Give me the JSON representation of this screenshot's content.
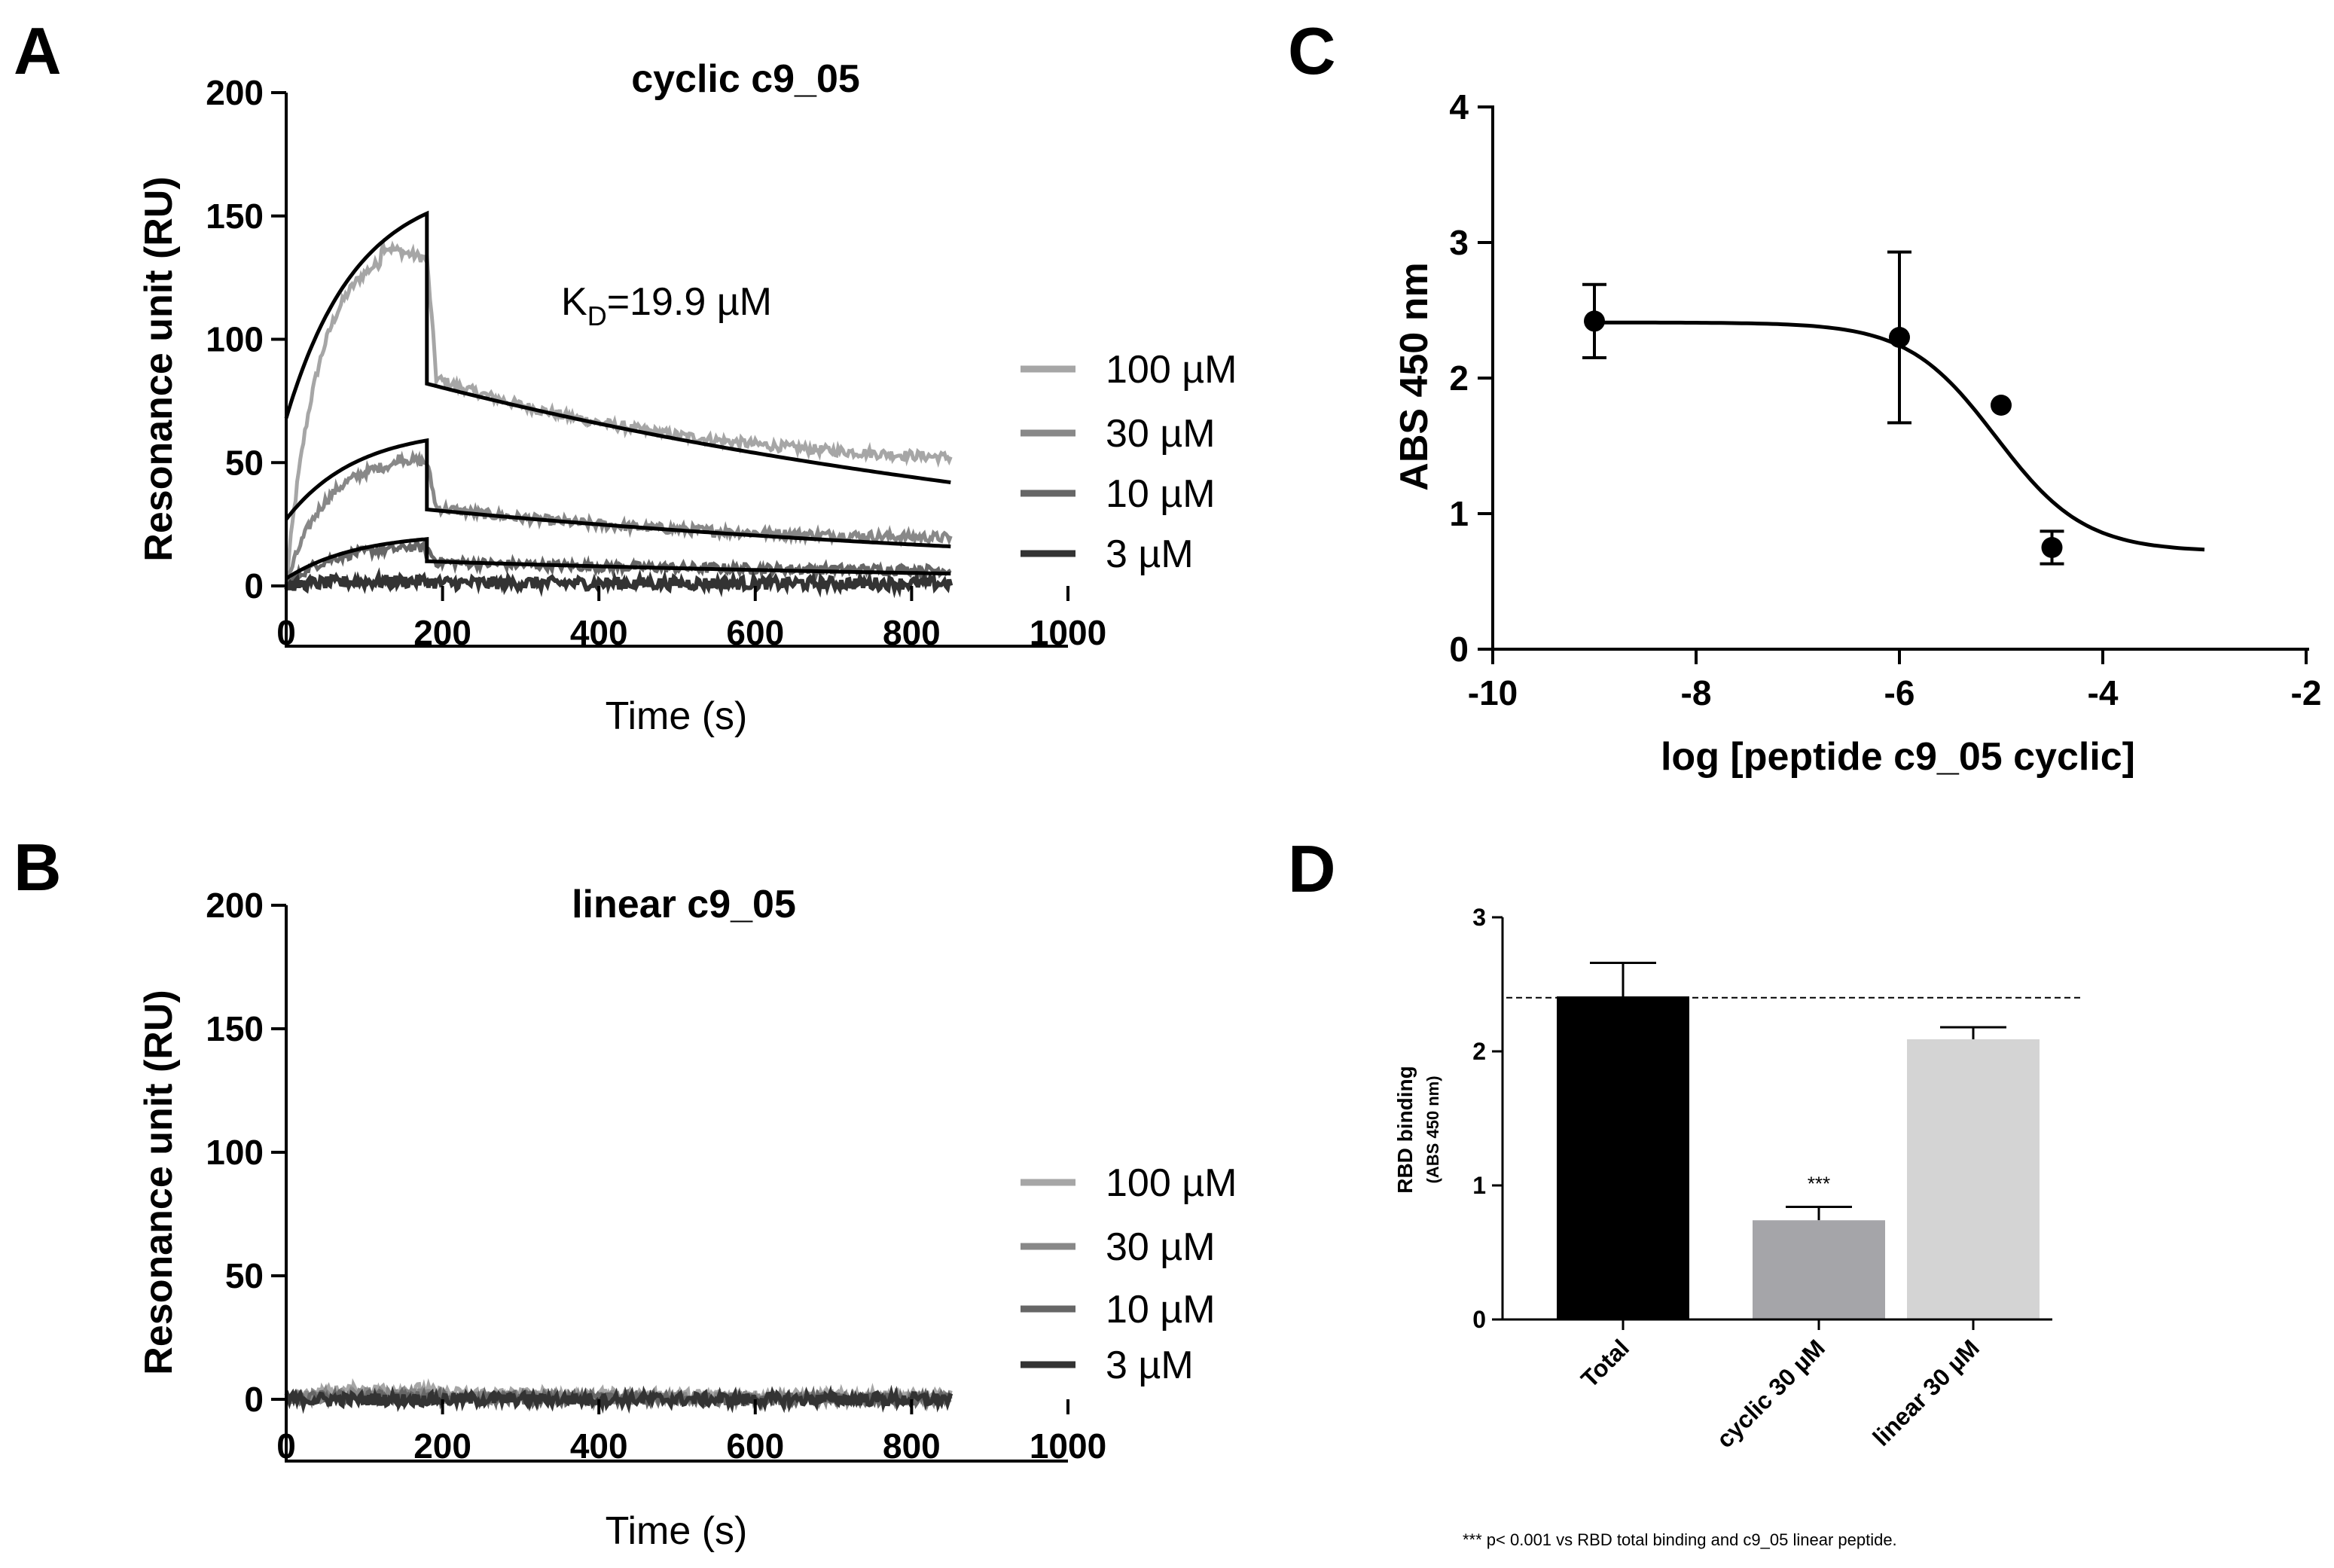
{
  "panels": {
    "A": {
      "letter": "A"
    },
    "B": {
      "letter": "B"
    },
    "C": {
      "letter": "C"
    },
    "D": {
      "letter": "D"
    }
  },
  "colors": {
    "c100": "#a6a6a6",
    "c30": "#888888",
    "c10": "#666666",
    "c3": "#333333",
    "fit": "#000000",
    "barTotal": "#000000",
    "barCyclic": "#a5a5a9",
    "barLinear": "#d4d4d4"
  },
  "chart_data": [
    {
      "id": "A",
      "type": "line",
      "title": "cyclic c9_05",
      "xlabel": "Time (s)",
      "ylabel": "Resonance unit (RU)",
      "xlim": [
        0,
        1000
      ],
      "ylim": [
        0,
        200
      ],
      "xticks": [
        "0",
        "200",
        "400",
        "600",
        "800",
        "1000"
      ],
      "yticks": [
        "0",
        "50",
        "100",
        "150",
        "200"
      ],
      "annotation": {
        "k": "K",
        "sub": "D",
        "rest": "=19.9 µM"
      },
      "injection_end_s": 180,
      "series": [
        {
          "name": "100 µM",
          "color_key": "c100",
          "plateau": 138,
          "peak_t": 120,
          "end_value": 48
        },
        {
          "name": "30 µM",
          "color_key": "c30",
          "plateau": 52,
          "peak_t": 140,
          "end_value": 18
        },
        {
          "name": "10 µM",
          "color_key": "c10",
          "plateau": 16,
          "peak_t": 150,
          "end_value": 6
        },
        {
          "name": "3 µM",
          "color_key": "c3",
          "plateau": 2,
          "peak_t": 150,
          "end_value": 1
        }
      ],
      "fits": [
        {
          "start": 68,
          "peak": 151,
          "drop_to": 82,
          "end_value": 42
        },
        {
          "start": 27,
          "peak": 59,
          "drop_to": 31,
          "end_value": 16
        },
        {
          "start": 3,
          "peak": 19,
          "drop_to": 10,
          "end_value": 5
        }
      ],
      "x_end": 850
    },
    {
      "id": "B",
      "type": "line",
      "title": "linear c9_05",
      "xlabel": "Time (s)",
      "ylabel": "Resonance unit (RU)",
      "xlim": [
        0,
        1000
      ],
      "ylim": [
        0,
        200
      ],
      "xticks": [
        "0",
        "200",
        "400",
        "600",
        "800",
        "1000"
      ],
      "yticks": [
        "0",
        "50",
        "100",
        "150",
        "200"
      ],
      "series": [
        {
          "name": "100 µM",
          "color_key": "c100",
          "plateau": 4,
          "end_value": 1
        },
        {
          "name": "30 µM",
          "color_key": "c30",
          "plateau": 2,
          "end_value": 0
        },
        {
          "name": "10 µM",
          "color_key": "c10",
          "plateau": 1,
          "end_value": 0
        },
        {
          "name": "3 µM",
          "color_key": "c3",
          "plateau": 0,
          "end_value": 0
        }
      ],
      "x_end": 850
    },
    {
      "id": "C",
      "type": "scatter",
      "xlabel": "log [peptide c9_05 cyclic]",
      "ylabel": "ABS 450 nm",
      "xlim": [
        -10,
        -2
      ],
      "ylim": [
        0,
        4
      ],
      "xticks": [
        "-10",
        "-8",
        "-6",
        "-4",
        "-2"
      ],
      "yticks": [
        "0",
        "1",
        "2",
        "3",
        "4"
      ],
      "points": [
        {
          "x": -9,
          "y": 2.42,
          "err": 0.27
        },
        {
          "x": -6,
          "y": 2.3,
          "err": 0.63
        },
        {
          "x": -5,
          "y": 1.8,
          "err": 0
        },
        {
          "x": -4.5,
          "y": 0.75,
          "err": 0.12
        }
      ],
      "fit": {
        "top": 2.41,
        "bottom": 0.72,
        "logIC50": -5.05,
        "hill": 1.0,
        "x_from": -9,
        "x_to": -3
      }
    },
    {
      "id": "D",
      "type": "bar",
      "ylabel": "RBD binding",
      "ylabel_sub": "(ABS 450 nm)",
      "ylim": [
        0,
        3
      ],
      "yticks": [
        "0",
        "1",
        "2",
        "3"
      ],
      "categories": [
        "Total",
        "cyclic 30 µM",
        "linear 30 µM"
      ],
      "values": [
        2.41,
        0.74,
        2.09
      ],
      "errors": [
        0.25,
        0.1,
        0.09
      ],
      "color_keys": [
        "barTotal",
        "barCyclic",
        "barLinear"
      ],
      "reference_line": 2.4,
      "significance": [
        "",
        "***",
        ""
      ],
      "footnote": "*** p< 0.001 vs RBD total binding and c9_05 linear peptide."
    }
  ]
}
